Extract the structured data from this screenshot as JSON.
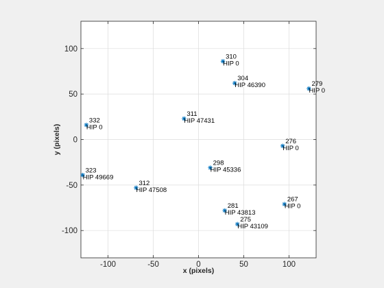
{
  "chart_data": {
    "type": "scatter",
    "title": "",
    "xlabel": "x (pixels)",
    "ylabel": "y (pixels)",
    "xlim": [
      -130,
      130
    ],
    "ylim": [
      -130,
      130
    ],
    "xticks": [
      -100,
      -50,
      0,
      50,
      100
    ],
    "yticks": [
      -100,
      -50,
      0,
      50,
      100
    ],
    "xtick_labels": [
      "-100",
      "-50",
      "0",
      "50",
      "100"
    ],
    "ytick_labels": [
      "-100",
      "-50",
      "0",
      "50",
      "100"
    ],
    "grid": true,
    "legend": "none",
    "marker": "asterisk",
    "marker_color": "#0072bd",
    "points": [
      {
        "x": 27,
        "y": 86,
        "id": "310",
        "hip": "HIP 0"
      },
      {
        "x": 40,
        "y": 62,
        "id": "304",
        "hip": "HIP 46390"
      },
      {
        "x": 122,
        "y": 56,
        "id": "279",
        "hip": "HIP 0"
      },
      {
        "x": -16,
        "y": 23,
        "id": "311",
        "hip": "HIP 47431"
      },
      {
        "x": -124,
        "y": 16,
        "id": "332",
        "hip": "HIP 0"
      },
      {
        "x": 93,
        "y": -7,
        "id": "276",
        "hip": "HIP 0"
      },
      {
        "x": 13,
        "y": -31,
        "id": "298",
        "hip": "HIP 45336"
      },
      {
        "x": -128,
        "y": -39,
        "id": "323",
        "hip": "HIP 49669"
      },
      {
        "x": -69,
        "y": -53,
        "id": "312",
        "hip": "HIP 47508"
      },
      {
        "x": 95,
        "y": -71,
        "id": "267",
        "hip": "HIP 0"
      },
      {
        "x": 29,
        "y": -78,
        "id": "281",
        "hip": "HIP 43813"
      },
      {
        "x": 43,
        "y": -93,
        "id": "275",
        "hip": "HIP 43109"
      }
    ]
  }
}
